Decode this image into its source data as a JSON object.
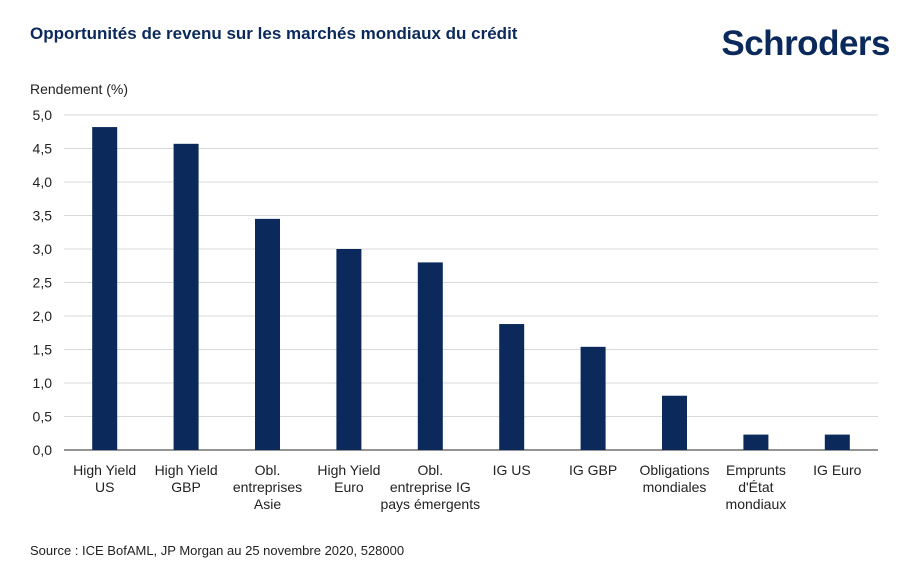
{
  "header": {
    "title": "Opportunités de revenu sur les marchés mondiaux du crédit",
    "logo_text": "Schroders"
  },
  "footer": {
    "source": "Source : ICE BofAML, JP Morgan au 25 novembre 2020, 528000"
  },
  "colors": {
    "bar": "#0b2a5b",
    "grid": "#d9d9d9",
    "axis": "#555555"
  },
  "chart_data": {
    "type": "bar",
    "title": "Opportunités de revenu sur les marchés mondiaux du crédit",
    "ylabel": "Rendement (%)",
    "xlabel": "",
    "ylim": [
      0,
      5
    ],
    "grid": true,
    "yticks": [
      "0,0",
      "0,5",
      "1,0",
      "1,5",
      "2,0",
      "2,5",
      "3,0",
      "3,5",
      "4,0",
      "4,5",
      "5,0"
    ],
    "categories": [
      [
        "High Yield",
        "US"
      ],
      [
        "High Yield",
        "GBP"
      ],
      [
        "Obl.",
        "entreprises",
        "Asie"
      ],
      [
        "High Yield",
        "Euro"
      ],
      [
        "Obl.",
        "entreprise IG",
        "pays émergents"
      ],
      [
        "IG US"
      ],
      [
        "IG GBP"
      ],
      [
        "Obligations",
        "mondiales"
      ],
      [
        "Emprunts",
        "d'État",
        "mondiaux"
      ],
      [
        "IG Euro"
      ]
    ],
    "values": [
      4.82,
      4.57,
      3.45,
      3.0,
      2.8,
      1.88,
      1.54,
      0.81,
      0.23,
      0.23
    ]
  }
}
